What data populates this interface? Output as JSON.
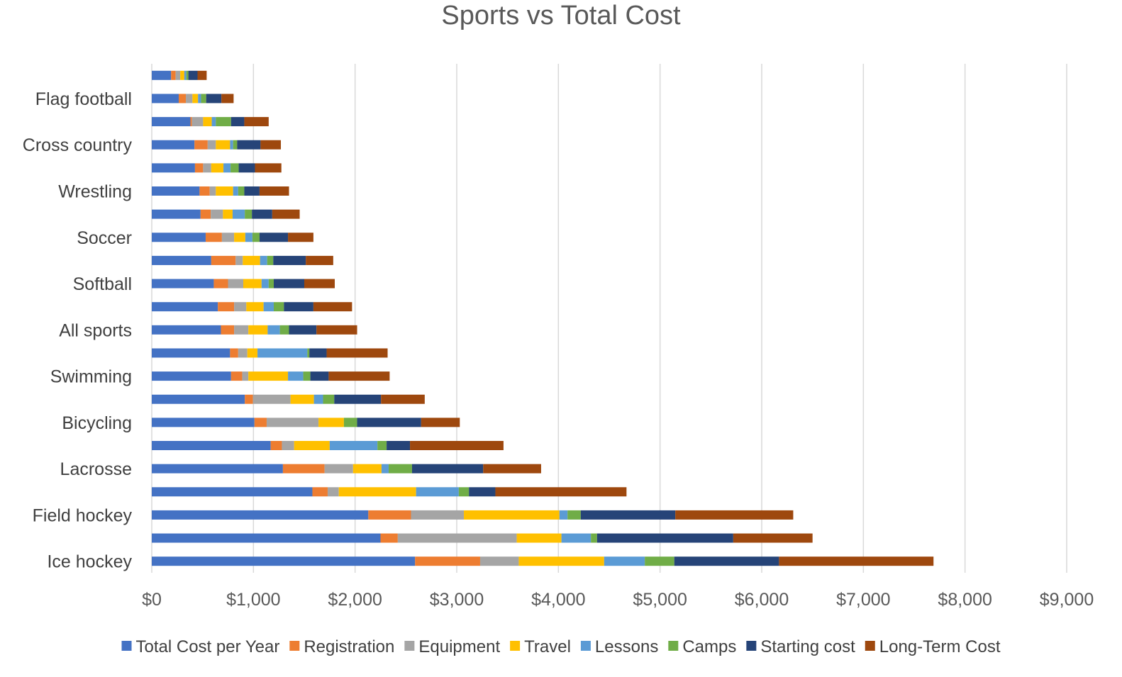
{
  "chart_data": {
    "type": "bar",
    "orientation": "horizontal",
    "stacked": true,
    "title": "Sports vs Total Cost",
    "xlabel": "",
    "ylabel": "",
    "xlim": [
      0,
      9000
    ],
    "x_ticks": [
      "$0",
      "$1,000",
      "$2,000",
      "$3,000",
      "$4,000",
      "$5,000",
      "$6,000",
      "$7,000",
      "$8,000",
      "$9,000"
    ],
    "grid": "vertical",
    "legend": "bottom",
    "categories": [
      "",
      "Flag football",
      "",
      "Cross country",
      "",
      "Wrestling",
      "",
      "Soccer",
      "",
      "Softball",
      "",
      "All sports",
      "",
      "Swimming",
      "",
      "Bicycling",
      "",
      "Lacrosse",
      "",
      "Field hockey",
      "",
      "Ice hockey"
    ],
    "series": [
      {
        "name": "Total Cost per Year",
        "color": "#4472C4",
        "values": [
          190,
          265,
          380,
          420,
          425,
          470,
          480,
          530,
          585,
          610,
          650,
          680,
          770,
          780,
          915,
          1010,
          1170,
          1290,
          1580,
          2130,
          2250,
          2590
        ]
      },
      {
        "name": "Registration",
        "color": "#ED7D31",
        "values": [
          45,
          70,
          15,
          130,
          80,
          100,
          100,
          160,
          240,
          140,
          160,
          130,
          80,
          110,
          80,
          120,
          110,
          410,
          150,
          420,
          170,
          640
        ]
      },
      {
        "name": "Equipment",
        "color": "#A5A5A5",
        "values": [
          45,
          65,
          110,
          80,
          80,
          60,
          120,
          120,
          70,
          150,
          120,
          140,
          90,
          60,
          370,
          510,
          120,
          280,
          110,
          520,
          1170,
          380
        ]
      },
      {
        "name": "Travel",
        "color": "#FFC000",
        "values": [
          40,
          55,
          85,
          140,
          120,
          170,
          95,
          110,
          170,
          180,
          170,
          190,
          100,
          390,
          230,
          250,
          350,
          280,
          760,
          940,
          440,
          840
        ]
      },
      {
        "name": "Lessons",
        "color": "#5B9BD5",
        "values": [
          20,
          30,
          40,
          30,
          70,
          50,
          120,
          70,
          70,
          70,
          100,
          120,
          490,
          150,
          90,
          0,
          470,
          70,
          420,
          80,
          290,
          400
        ]
      },
      {
        "name": "Camps",
        "color": "#70AD47",
        "values": [
          20,
          50,
          150,
          40,
          80,
          60,
          70,
          70,
          60,
          50,
          100,
          90,
          20,
          70,
          110,
          130,
          90,
          230,
          100,
          130,
          60,
          290
        ]
      },
      {
        "name": "Starting cost",
        "color": "#264478",
        "values": [
          90,
          150,
          130,
          230,
          160,
          150,
          200,
          280,
          320,
          300,
          290,
          270,
          170,
          180,
          460,
          630,
          230,
          700,
          260,
          930,
          1340,
          1030
        ]
      },
      {
        "name": "Long-Term Cost",
        "color": "#9E480E",
        "values": [
          90,
          120,
          240,
          200,
          260,
          290,
          270,
          250,
          270,
          300,
          380,
          400,
          600,
          600,
          430,
          380,
          920,
          570,
          1290,
          1160,
          780,
          1520
        ]
      }
    ]
  }
}
